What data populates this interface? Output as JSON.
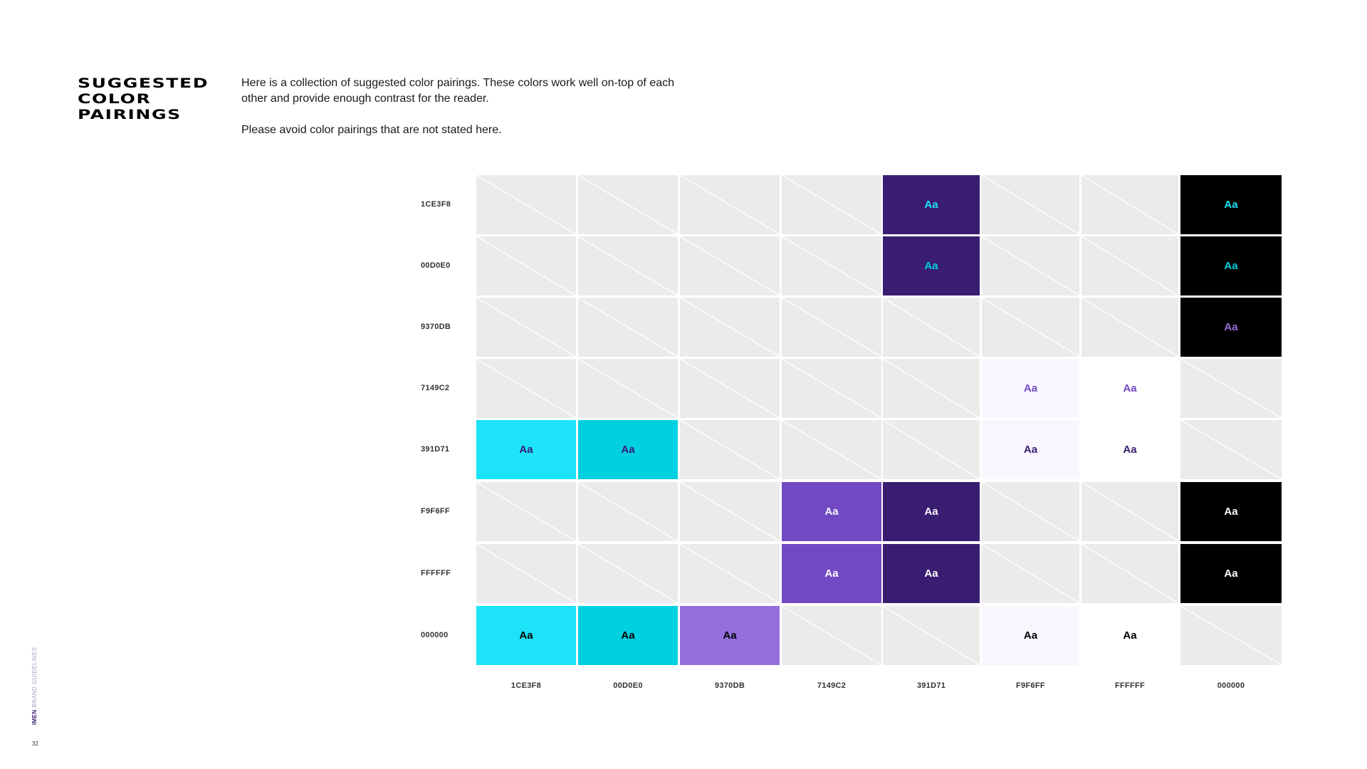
{
  "header": {
    "title_lines": [
      "SUGGESTED",
      "COLOR",
      "PAIRINGS"
    ],
    "paragraphs": [
      "Here is a collection of suggested color pairings. These colors work well on-top of each other and provide enough contrast for the reader.",
      "Please avoid color pairings that are not stated here."
    ]
  },
  "matrix": {
    "sample_text": "Aa",
    "empty_color": "#EBEBEB",
    "columns": [
      {
        "label": "1CE3F8",
        "hex": "#1CE3F8"
      },
      {
        "label": "00D0E0",
        "hex": "#00D0E0"
      },
      {
        "label": "9370DB",
        "hex": "#9370DB"
      },
      {
        "label": "7149C2",
        "hex": "#7149C2"
      },
      {
        "label": "391D71",
        "hex": "#391D71"
      },
      {
        "label": "F9F6FF",
        "hex": "#F9F6FF"
      },
      {
        "label": "FFFFFF",
        "hex": "#FFFFFF"
      },
      {
        "label": "000000",
        "hex": "#000000"
      }
    ],
    "rows": [
      {
        "label": "1CE3F8",
        "hex": "#1CE3F8",
        "pairs": [
          false,
          false,
          false,
          false,
          true,
          false,
          false,
          true
        ]
      },
      {
        "label": "00D0E0",
        "hex": "#00D0E0",
        "pairs": [
          false,
          false,
          false,
          false,
          true,
          false,
          false,
          true
        ]
      },
      {
        "label": "9370DB",
        "hex": "#9370DB",
        "pairs": [
          false,
          false,
          false,
          false,
          false,
          false,
          false,
          true
        ]
      },
      {
        "label": "7149C2",
        "hex": "#7149C2",
        "pairs": [
          false,
          false,
          false,
          false,
          false,
          true,
          true,
          false
        ]
      },
      {
        "label": "391D71",
        "hex": "#391D71",
        "pairs": [
          true,
          true,
          false,
          false,
          false,
          true,
          true,
          false
        ]
      },
      {
        "label": "F9F6FF",
        "hex": "#F9F6FF",
        "pairs": [
          false,
          false,
          false,
          true,
          true,
          false,
          false,
          true
        ]
      },
      {
        "label": "FFFFFF",
        "hex": "#FFFFFF",
        "pairs": [
          false,
          false,
          false,
          true,
          true,
          false,
          false,
          true
        ]
      },
      {
        "label": "000000",
        "hex": "#000000",
        "pairs": [
          true,
          true,
          true,
          false,
          false,
          true,
          true,
          false
        ]
      }
    ]
  },
  "footer": {
    "brand_bold": "IMEN",
    "brand_rest": " BRAND GUIDELINES",
    "page_number": "32"
  }
}
